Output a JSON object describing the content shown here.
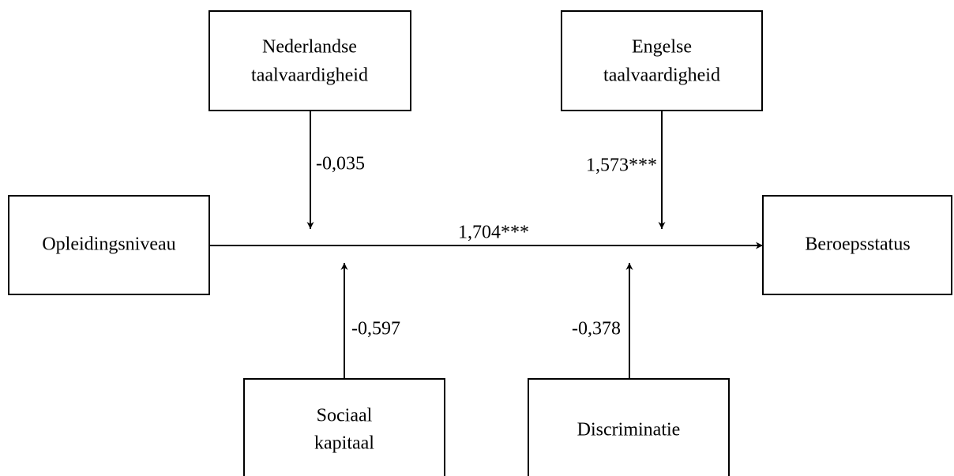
{
  "nodes": [
    {
      "id": "nederlands",
      "lines": [
        "Nederlandse",
        "taalvaardigheid"
      ]
    },
    {
      "id": "engels",
      "lines": [
        "Engelse",
        "taalvaardigheid"
      ]
    },
    {
      "id": "opleiding",
      "lines": [
        "Opleidingsniveau"
      ]
    },
    {
      "id": "beroep",
      "lines": [
        "Beroepsstatus"
      ]
    },
    {
      "id": "sociaal",
      "lines": [
        "Sociaal",
        "kapitaal"
      ]
    },
    {
      "id": "discriminatie",
      "lines": [
        "Discriminatie"
      ]
    }
  ],
  "edges": [
    {
      "label": "1,704***"
    },
    {
      "label": "-0,035"
    },
    {
      "label": "1,573***"
    },
    {
      "label": "-0,597"
    },
    {
      "label": "-0,378"
    }
  ]
}
